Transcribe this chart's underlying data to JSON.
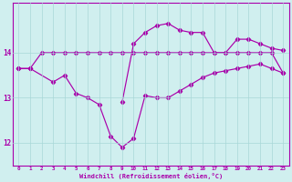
{
  "hours": [
    0,
    1,
    2,
    3,
    4,
    5,
    6,
    7,
    8,
    9,
    10,
    11,
    12,
    13,
    14,
    15,
    16,
    17,
    18,
    19,
    20,
    21,
    22,
    23
  ],
  "series1_x": [
    0,
    1,
    2,
    3,
    4,
    5,
    6,
    7,
    8,
    9,
    10,
    11,
    12,
    13,
    14,
    15,
    16,
    17,
    18,
    19,
    20,
    21,
    22,
    23
  ],
  "series1_y": [
    13.65,
    13.65,
    14.0,
    14.0,
    14.0,
    14.0,
    14.0,
    14.0,
    14.0,
    14.0,
    14.0,
    14.0,
    14.0,
    14.0,
    14.0,
    14.0,
    14.0,
    14.0,
    14.0,
    14.0,
    14.0,
    14.0,
    14.0,
    13.55
  ],
  "series2_x": [
    0,
    1,
    3,
    4,
    5,
    6,
    7,
    8,
    9,
    10,
    11,
    12,
    13,
    14,
    15,
    16,
    17,
    18,
    19,
    20,
    21,
    22,
    23
  ],
  "series2_y": [
    13.65,
    13.65,
    13.35,
    13.5,
    13.1,
    13.0,
    12.85,
    12.15,
    11.9,
    12.1,
    13.05,
    13.0,
    13.0,
    13.15,
    13.3,
    13.45,
    13.55,
    13.6,
    13.65,
    13.7,
    13.75,
    13.65,
    13.55
  ],
  "series3_x": [
    9,
    10,
    11,
    12,
    13,
    14,
    15,
    16,
    17,
    18,
    19,
    20,
    21,
    22,
    23
  ],
  "series3_y": [
    12.9,
    14.2,
    14.45,
    14.6,
    14.65,
    14.5,
    14.45,
    14.45,
    14.0,
    14.0,
    14.3,
    14.3,
    14.2,
    14.1,
    14.05
  ],
  "line_color": "#aa00aa",
  "bg_color": "#d0efef",
  "grid_color": "#a8d8d8",
  "xlabel": "Windchill (Refroidissement éolien,°C)",
  "ylim": [
    11.5,
    15.1
  ],
  "xlim": [
    -0.5,
    23.5
  ],
  "yticks": [
    12,
    13,
    14
  ],
  "xticks": [
    0,
    1,
    2,
    3,
    4,
    5,
    6,
    7,
    8,
    9,
    10,
    11,
    12,
    13,
    14,
    15,
    16,
    17,
    18,
    19,
    20,
    21,
    22,
    23
  ]
}
